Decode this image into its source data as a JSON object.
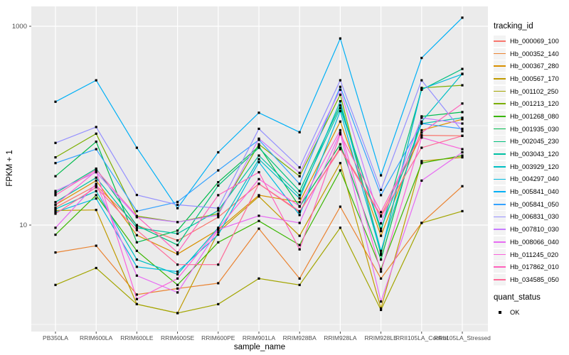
{
  "chart_data": {
    "type": "line",
    "title": "",
    "xlabel": "sample_name",
    "ylabel": "FPKM + 1",
    "y_scale": "log10",
    "ylim": [
      1,
      1580
    ],
    "grid": "on",
    "legend_position": "right",
    "legend_tracking_title": "tracking_id",
    "y_ticks": [
      {
        "label": "1000",
        "value": 1000
      },
      {
        "label": "10",
        "value": 10
      }
    ],
    "major_gridlines": [
      10,
      1000
    ],
    "minor_gridlines": [
      1,
      100
    ],
    "point_marker": {
      "shape": "square",
      "color": "#000000"
    },
    "categories": [
      "PB350LA",
      "RRIM600LA",
      "RRIM600LE",
      "RRIM600SE",
      "RRIM600PE",
      "RRIM901LA",
      "RRIM928BA",
      "RRIM928LA",
      "RRIM928LE",
      "RRII105LA_Control",
      "RRII105LA_Stressed"
    ],
    "series": [
      {
        "name": "Hb_000069_100",
        "color": "#F8766D",
        "values": [
          15,
          25,
          10,
          7,
          12,
          26,
          13.5,
          60,
          12.5,
          80,
          79
        ]
      },
      {
        "name": "Hb_000352_140",
        "color": "#EA8331",
        "values": [
          5.3,
          6.2,
          2.0,
          2.3,
          2.6,
          9.2,
          2.9,
          15.3,
          2.9,
          10.5,
          24.6
        ]
      },
      {
        "name": "Hb_000367_280",
        "color": "#D89000",
        "values": [
          16,
          28,
          7.9,
          5.1,
          9.0,
          20,
          17,
          110,
          7.8,
          90,
          116
        ]
      },
      {
        "name": "Hb_000567_170",
        "color": "#C09B00",
        "values": [
          14,
          14.2,
          1.6,
          1.3,
          8.5,
          19.4,
          7.8,
          42,
          1.45,
          44,
          48
        ]
      },
      {
        "name": "Hb_001102_250",
        "color": "#A3A500",
        "values": [
          2.5,
          3.7,
          1.6,
          1.3,
          1.6,
          2.9,
          2.5,
          9.4,
          1.4,
          10.5,
          13.8
        ]
      },
      {
        "name": "Hb_001213_120",
        "color": "#7CAE00",
        "values": [
          48,
          83,
          12.3,
          10.7,
          13,
          65,
          31,
          205,
          5.0,
          240,
          255
        ]
      },
      {
        "name": "Hb_001268_080",
        "color": "#39B600",
        "values": [
          8.0,
          20,
          5.5,
          2.5,
          6.7,
          11,
          6.3,
          35.5,
          3.6,
          42,
          50
        ]
      },
      {
        "name": "Hb_001935_030",
        "color": "#00BB4E",
        "values": [
          31,
          69,
          6.7,
          8.8,
          27,
          62,
          15.3,
          65,
          4.5,
          124,
          137
        ]
      },
      {
        "name": "Hb_002045_230",
        "color": "#00BF7D",
        "values": [
          21,
          37,
          9.9,
          6.3,
          25,
          60,
          22,
          160,
          8.7,
          230,
          372
        ]
      },
      {
        "name": "Hb_003043_120",
        "color": "#00C1A3",
        "values": [
          17,
          30,
          9.4,
          8.2,
          14,
          50,
          20,
          150,
          9.2,
          105,
          120
        ]
      },
      {
        "name": "Hb_003929_120",
        "color": "#00BFC4",
        "values": [
          14.5,
          22,
          4.5,
          3.2,
          9.4,
          46,
          18.6,
          176,
          5.5,
          110,
          333
        ]
      },
      {
        "name": "Hb_004297_040",
        "color": "#00BAE0",
        "values": [
          13.5,
          18.5,
          3.8,
          3.4,
          8.0,
          43,
          12.6,
          140,
          5.2,
          234,
          330
        ]
      },
      {
        "name": "Hb_005841_040",
        "color": "#00B0F6",
        "values": [
          174,
          286,
          60,
          14.8,
          54,
          135,
          86,
          753,
          31.6,
          480,
          1220
        ]
      },
      {
        "name": "Hb_005841_050",
        "color": "#35A2FF",
        "values": [
          42,
          58,
          13.8,
          17.1,
          35.5,
          72,
          26,
          246,
          20,
          105,
          93
        ]
      },
      {
        "name": "Hb_006831_030",
        "color": "#9590FF",
        "values": [
          67,
          97,
          20.1,
          16,
          14.8,
          93,
          38,
          286,
          22.6,
          286,
          88
        ]
      },
      {
        "name": "Hb_007810_030",
        "color": "#C77CFF",
        "values": [
          22,
          34,
          12.0,
          10.7,
          12.6,
          74,
          33.5,
          230,
          10.4,
          120,
          105
        ]
      },
      {
        "name": "Hb_008066_040",
        "color": "#E76BF3",
        "values": [
          9.4,
          26,
          3.1,
          2.1,
          9.0,
          12.4,
          10.5,
          85,
          1.7,
          28,
          54
        ]
      },
      {
        "name": "Hb_011245_020",
        "color": "#FA62DB",
        "values": [
          16,
          35,
          1.8,
          2.9,
          9.2,
          29,
          15.5,
          90,
          3.4,
          76,
          58
        ]
      },
      {
        "name": "Hb_017862_010",
        "color": "#FF62BC",
        "values": [
          20,
          36,
          12.3,
          5.3,
          20,
          34,
          5.7,
          82,
          13.5,
          85,
          167
        ]
      },
      {
        "name": "Hb_034585_050",
        "color": "#FF6A98",
        "values": [
          13,
          24,
          8.9,
          4.0,
          4.0,
          26,
          13.8,
          58,
          12.2,
          60,
          79
        ]
      }
    ],
    "quant_status": {
      "title": "quant_status",
      "items": [
        "OK"
      ]
    }
  },
  "colors": {
    "panel_bg": "#EBEBEB",
    "gridline": "#FFFFFF",
    "tick_mark": "#333333",
    "tick_text": "#4D4D4D",
    "point": "#000000"
  }
}
